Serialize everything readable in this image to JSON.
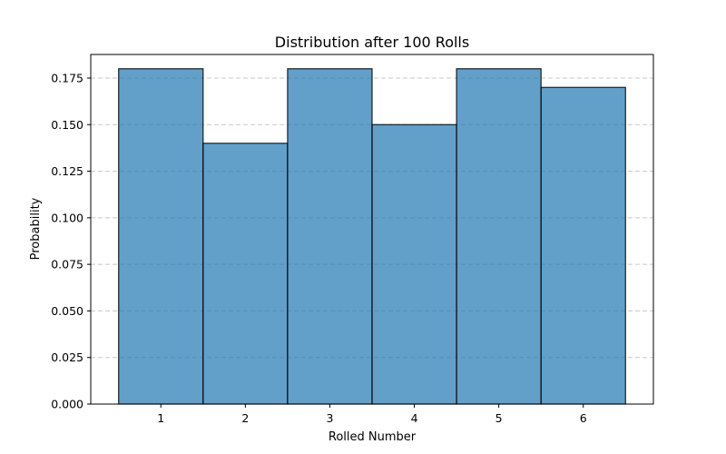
{
  "chart_data": {
    "type": "bar",
    "title": "Distribution after 100 Rolls",
    "xlabel": "Rolled Number",
    "ylabel": "Probability",
    "categories": [
      "1",
      "2",
      "3",
      "4",
      "5",
      "6"
    ],
    "values": [
      0.18,
      0.14,
      0.18,
      0.15,
      0.18,
      0.17
    ],
    "ylim": [
      0,
      0.18767
    ],
    "yticks": [
      "0.000",
      "0.025",
      "0.050",
      "0.075",
      "0.100",
      "0.125",
      "0.150",
      "0.175"
    ],
    "grid": "y-dashed",
    "colors": {
      "bar": "#1f77b4",
      "edge": "#000000",
      "grid": "#c8c8c8"
    }
  }
}
